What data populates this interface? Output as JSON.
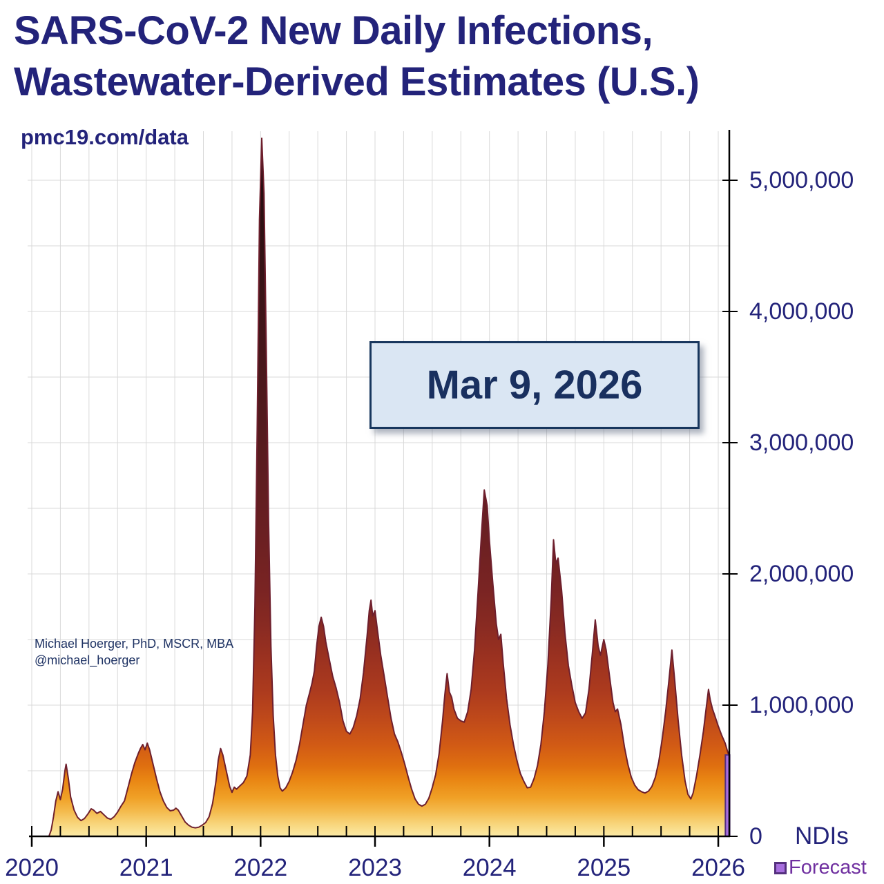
{
  "header": {
    "title_line1": "SARS-CoV-2 New Daily Infections,",
    "title_line2": "Wastewater-Derived Estimates (U.S.)",
    "source": "pmc19.com/data"
  },
  "annotations": {
    "date_label": "Mar 9, 2026",
    "attribution_line1": "Michael Hoerger, PhD, MSCR, MBA",
    "attribution_line2": "@michael_hoerger",
    "units_label": "NDIs"
  },
  "legend": {
    "forecast_label": "Forecast",
    "forecast_fill": "#a76ede",
    "forecast_border": "#55307e",
    "forecast_text_color": "#7030a0"
  },
  "colors": {
    "navy_text": "#23237a",
    "date_text": "#19305f",
    "date_box_fill": "#dae6f3",
    "date_box_border": "#17365d",
    "grid": "#d9d9d9",
    "axis": "#000000",
    "area_stroke": "#6e1f2d"
  },
  "chart_data": {
    "type": "area",
    "title": "SARS-CoV-2 New Daily Infections, Wastewater-Derived Estimates (U.S.)",
    "xlabel": "",
    "ylabel": "NDIs (new daily infections)",
    "x_range_years": [
      2020,
      2026.25
    ],
    "ylim": [
      0,
      5400000
    ],
    "grid": {
      "x_step_years": 0.25,
      "y_step_millions": 0.5,
      "grid_on": true
    },
    "legend_position": "bottom-right",
    "x_tick_years": [
      2020,
      2021,
      2022,
      2023,
      2024,
      2025,
      2026
    ],
    "x_tick_labels": [
      "2020",
      "2021",
      "2022",
      "2023",
      "2024",
      "2025",
      "2026"
    ],
    "y_tick_values_millions": [
      5,
      4,
      3,
      2,
      1,
      0
    ],
    "y_tick_labels": [
      "5,000,000",
      "4,000,000",
      "3,000,000",
      "2,000,000",
      "1,000,000",
      "0"
    ],
    "series_name": "Estimated new daily infections (millions), wastewater-derived",
    "points_year_millions": [
      [
        2020.15,
        0.0
      ],
      [
        2020.17,
        0.05
      ],
      [
        2020.19,
        0.15
      ],
      [
        2020.21,
        0.27
      ],
      [
        2020.23,
        0.34
      ],
      [
        2020.25,
        0.28
      ],
      [
        2020.27,
        0.36
      ],
      [
        2020.29,
        0.5
      ],
      [
        2020.3,
        0.55
      ],
      [
        2020.32,
        0.44
      ],
      [
        2020.34,
        0.3
      ],
      [
        2020.37,
        0.2
      ],
      [
        2020.4,
        0.145
      ],
      [
        2020.43,
        0.12
      ],
      [
        2020.46,
        0.135
      ],
      [
        2020.49,
        0.17
      ],
      [
        2020.52,
        0.21
      ],
      [
        2020.54,
        0.2
      ],
      [
        2020.57,
        0.175
      ],
      [
        2020.6,
        0.19
      ],
      [
        2020.63,
        0.165
      ],
      [
        2020.66,
        0.14
      ],
      [
        2020.69,
        0.13
      ],
      [
        2020.72,
        0.15
      ],
      [
        2020.75,
        0.185
      ],
      [
        2020.78,
        0.23
      ],
      [
        2020.81,
        0.27
      ],
      [
        2020.84,
        0.37
      ],
      [
        2020.87,
        0.47
      ],
      [
        2020.9,
        0.56
      ],
      [
        2020.93,
        0.63
      ],
      [
        2020.95,
        0.67
      ],
      [
        2020.97,
        0.7
      ],
      [
        2020.99,
        0.66
      ],
      [
        2021.01,
        0.71
      ],
      [
        2021.03,
        0.66
      ],
      [
        2021.06,
        0.55
      ],
      [
        2021.09,
        0.44
      ],
      [
        2021.12,
        0.34
      ],
      [
        2021.15,
        0.27
      ],
      [
        2021.18,
        0.22
      ],
      [
        2021.21,
        0.195
      ],
      [
        2021.24,
        0.2
      ],
      [
        2021.26,
        0.215
      ],
      [
        2021.28,
        0.2
      ],
      [
        2021.31,
        0.155
      ],
      [
        2021.34,
        0.11
      ],
      [
        2021.37,
        0.085
      ],
      [
        2021.4,
        0.07
      ],
      [
        2021.43,
        0.065
      ],
      [
        2021.46,
        0.07
      ],
      [
        2021.49,
        0.085
      ],
      [
        2021.52,
        0.105
      ],
      [
        2021.55,
        0.15
      ],
      [
        2021.58,
        0.25
      ],
      [
        2021.61,
        0.42
      ],
      [
        2021.63,
        0.58
      ],
      [
        2021.65,
        0.67
      ],
      [
        2021.67,
        0.62
      ],
      [
        2021.7,
        0.5
      ],
      [
        2021.73,
        0.38
      ],
      [
        2021.75,
        0.335
      ],
      [
        2021.77,
        0.375
      ],
      [
        2021.79,
        0.36
      ],
      [
        2021.82,
        0.385
      ],
      [
        2021.85,
        0.41
      ],
      [
        2021.88,
        0.46
      ],
      [
        2021.91,
        0.62
      ],
      [
        2021.93,
        0.95
      ],
      [
        2021.95,
        1.75
      ],
      [
        2021.97,
        3.1
      ],
      [
        2021.99,
        4.7
      ],
      [
        2022.01,
        5.32
      ],
      [
        2022.03,
        4.9
      ],
      [
        2022.05,
        3.7
      ],
      [
        2022.07,
        2.4
      ],
      [
        2022.09,
        1.45
      ],
      [
        2022.11,
        0.92
      ],
      [
        2022.13,
        0.62
      ],
      [
        2022.15,
        0.46
      ],
      [
        2022.17,
        0.37
      ],
      [
        2022.19,
        0.345
      ],
      [
        2022.22,
        0.37
      ],
      [
        2022.25,
        0.42
      ],
      [
        2022.28,
        0.49
      ],
      [
        2022.31,
        0.58
      ],
      [
        2022.34,
        0.7
      ],
      [
        2022.37,
        0.85
      ],
      [
        2022.4,
        1.0
      ],
      [
        2022.43,
        1.1
      ],
      [
        2022.45,
        1.17
      ],
      [
        2022.47,
        1.26
      ],
      [
        2022.49,
        1.45
      ],
      [
        2022.51,
        1.6
      ],
      [
        2022.53,
        1.67
      ],
      [
        2022.55,
        1.6
      ],
      [
        2022.57,
        1.48
      ],
      [
        2022.6,
        1.35
      ],
      [
        2022.63,
        1.22
      ],
      [
        2022.66,
        1.13
      ],
      [
        2022.69,
        1.02
      ],
      [
        2022.72,
        0.88
      ],
      [
        2022.75,
        0.8
      ],
      [
        2022.78,
        0.78
      ],
      [
        2022.81,
        0.83
      ],
      [
        2022.84,
        0.92
      ],
      [
        2022.87,
        1.05
      ],
      [
        2022.9,
        1.25
      ],
      [
        2022.93,
        1.52
      ],
      [
        2022.95,
        1.72
      ],
      [
        2022.965,
        1.8
      ],
      [
        2022.98,
        1.68
      ],
      [
        2023.0,
        1.72
      ],
      [
        2023.02,
        1.58
      ],
      [
        2023.05,
        1.38
      ],
      [
        2023.08,
        1.22
      ],
      [
        2023.11,
        1.06
      ],
      [
        2023.14,
        0.9
      ],
      [
        2023.17,
        0.78
      ],
      [
        2023.2,
        0.72
      ],
      [
        2023.23,
        0.64
      ],
      [
        2023.26,
        0.55
      ],
      [
        2023.29,
        0.45
      ],
      [
        2023.32,
        0.36
      ],
      [
        2023.35,
        0.285
      ],
      [
        2023.38,
        0.245
      ],
      [
        2023.41,
        0.23
      ],
      [
        2023.44,
        0.245
      ],
      [
        2023.47,
        0.29
      ],
      [
        2023.5,
        0.37
      ],
      [
        2023.53,
        0.47
      ],
      [
        2023.56,
        0.63
      ],
      [
        2023.59,
        0.88
      ],
      [
        2023.61,
        1.08
      ],
      [
        2023.63,
        1.24
      ],
      [
        2023.65,
        1.1
      ],
      [
        2023.67,
        1.06
      ],
      [
        2023.69,
        0.97
      ],
      [
        2023.72,
        0.9
      ],
      [
        2023.75,
        0.88
      ],
      [
        2023.78,
        0.87
      ],
      [
        2023.81,
        0.95
      ],
      [
        2023.84,
        1.12
      ],
      [
        2023.87,
        1.42
      ],
      [
        2023.9,
        1.85
      ],
      [
        2023.93,
        2.3
      ],
      [
        2023.955,
        2.64
      ],
      [
        2023.98,
        2.52
      ],
      [
        2024.0,
        2.25
      ],
      [
        2024.03,
        1.92
      ],
      [
        2024.06,
        1.62
      ],
      [
        2024.08,
        1.5
      ],
      [
        2024.1,
        1.54
      ],
      [
        2024.12,
        1.32
      ],
      [
        2024.15,
        1.05
      ],
      [
        2024.18,
        0.85
      ],
      [
        2024.21,
        0.7
      ],
      [
        2024.24,
        0.58
      ],
      [
        2024.27,
        0.48
      ],
      [
        2024.3,
        0.42
      ],
      [
        2024.33,
        0.37
      ],
      [
        2024.36,
        0.375
      ],
      [
        2024.39,
        0.44
      ],
      [
        2024.42,
        0.54
      ],
      [
        2024.45,
        0.7
      ],
      [
        2024.48,
        0.95
      ],
      [
        2024.51,
        1.3
      ],
      [
        2024.54,
        1.8
      ],
      [
        2024.56,
        2.26
      ],
      [
        2024.58,
        2.08
      ],
      [
        2024.6,
        2.12
      ],
      [
        2024.63,
        1.88
      ],
      [
        2024.66,
        1.55
      ],
      [
        2024.69,
        1.3
      ],
      [
        2024.72,
        1.15
      ],
      [
        2024.75,
        1.02
      ],
      [
        2024.78,
        0.95
      ],
      [
        2024.81,
        0.9
      ],
      [
        2024.84,
        0.94
      ],
      [
        2024.87,
        1.12
      ],
      [
        2024.9,
        1.4
      ],
      [
        2024.925,
        1.65
      ],
      [
        2024.95,
        1.45
      ],
      [
        2024.97,
        1.38
      ],
      [
        2025.0,
        1.5
      ],
      [
        2025.02,
        1.42
      ],
      [
        2025.05,
        1.22
      ],
      [
        2025.08,
        1.02
      ],
      [
        2025.1,
        0.95
      ],
      [
        2025.12,
        0.97
      ],
      [
        2025.15,
        0.85
      ],
      [
        2025.18,
        0.68
      ],
      [
        2025.21,
        0.55
      ],
      [
        2025.24,
        0.45
      ],
      [
        2025.27,
        0.39
      ],
      [
        2025.3,
        0.355
      ],
      [
        2025.33,
        0.34
      ],
      [
        2025.36,
        0.33
      ],
      [
        2025.39,
        0.345
      ],
      [
        2025.42,
        0.38
      ],
      [
        2025.45,
        0.45
      ],
      [
        2025.48,
        0.57
      ],
      [
        2025.51,
        0.74
      ],
      [
        2025.54,
        0.95
      ],
      [
        2025.57,
        1.2
      ],
      [
        2025.595,
        1.42
      ],
      [
        2025.62,
        1.18
      ],
      [
        2025.65,
        0.88
      ],
      [
        2025.68,
        0.62
      ],
      [
        2025.71,
        0.42
      ],
      [
        2025.735,
        0.32
      ],
      [
        2025.76,
        0.285
      ],
      [
        2025.78,
        0.33
      ],
      [
        2025.81,
        0.46
      ],
      [
        2025.84,
        0.62
      ],
      [
        2025.87,
        0.8
      ],
      [
        2025.895,
        0.98
      ],
      [
        2025.915,
        1.12
      ],
      [
        2025.93,
        1.04
      ],
      [
        2025.95,
        0.97
      ],
      [
        2025.97,
        0.92
      ],
      [
        2026.0,
        0.84
      ],
      [
        2026.03,
        0.77
      ],
      [
        2026.06,
        0.71
      ],
      [
        2026.08,
        0.65
      ],
      [
        2026.1,
        0.6
      ]
    ],
    "forecast": {
      "label": "Forecast",
      "x_start_year": 2026.062,
      "x_end_year": 2026.1,
      "value_millions": 0.62
    },
    "gradient_stops": [
      [
        0,
        "#1c080b"
      ],
      [
        0.02,
        "#210a0e"
      ],
      [
        0.11,
        "#2c0f12"
      ],
      [
        0.21,
        "#381316"
      ],
      [
        0.3,
        "#45161a"
      ],
      [
        0.4,
        "#511a1d"
      ],
      [
        0.5,
        "#5f1d20"
      ],
      [
        0.58,
        "#6c2022"
      ],
      [
        0.65,
        "#7a2423"
      ],
      [
        0.7,
        "#882a22"
      ],
      [
        0.745,
        "#9a3120"
      ],
      [
        0.795,
        "#ad3b1e"
      ],
      [
        0.835,
        "#c04a1a"
      ],
      [
        0.87,
        "#d15a15"
      ],
      [
        0.9,
        "#df6f10"
      ],
      [
        0.92,
        "#e98613"
      ],
      [
        0.945,
        "#f0a026"
      ],
      [
        0.965,
        "#f4bb4e"
      ],
      [
        0.983,
        "#f8d67d"
      ],
      [
        1,
        "#fbeaa6"
      ]
    ]
  }
}
